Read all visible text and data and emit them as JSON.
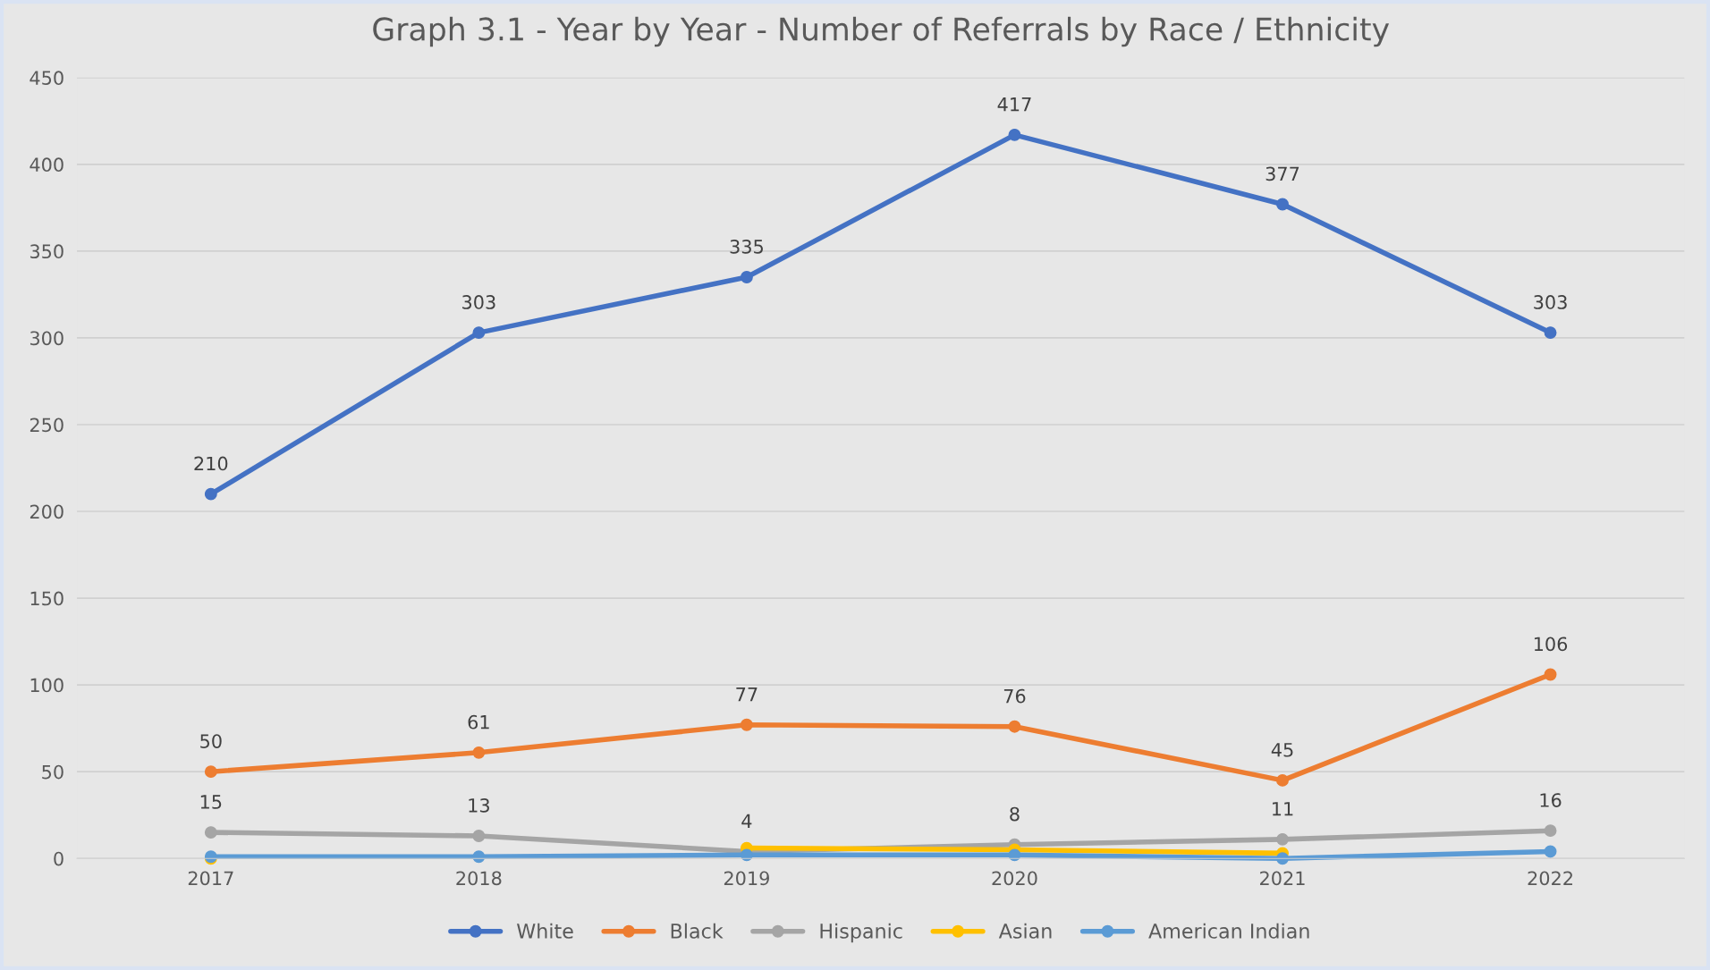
{
  "chart_data": {
    "type": "line",
    "title": "Graph 3.1 - Year by Year - Number of Referrals by Race / Ethnicity",
    "categories": [
      "2017",
      "2018",
      "2019",
      "2020",
      "2021",
      "2022"
    ],
    "series": [
      {
        "name": "White",
        "color": "#4472c4",
        "values": [
          210,
          303,
          335,
          417,
          377,
          303
        ],
        "value_labels": [
          "210",
          "303",
          "335",
          "417",
          "377",
          "303"
        ]
      },
      {
        "name": "Black",
        "color": "#ed7d31",
        "values": [
          50,
          61,
          77,
          76,
          45,
          106
        ],
        "value_labels": [
          "50",
          "61",
          "77",
          "76",
          "45",
          "106"
        ]
      },
      {
        "name": "Hispanic",
        "color": "#a5a5a5",
        "values": [
          15,
          13,
          4,
          8,
          11,
          16
        ],
        "value_labels": [
          "15",
          "13",
          "4",
          "8",
          "11",
          "16"
        ]
      },
      {
        "name": "Asian",
        "color": "#ffc000",
        "values": [
          0,
          null,
          6,
          5,
          3,
          null
        ]
      },
      {
        "name": "American Indian",
        "color": "#5b9bd5",
        "values": [
          1,
          1,
          2,
          2,
          0,
          4
        ]
      }
    ],
    "ylim": [
      0,
      450
    ],
    "yticks": [
      0,
      50,
      100,
      150,
      200,
      250,
      300,
      350,
      400,
      450
    ],
    "grid": "y",
    "legend": "bottom",
    "marker": "circle",
    "line_style": "solid"
  }
}
